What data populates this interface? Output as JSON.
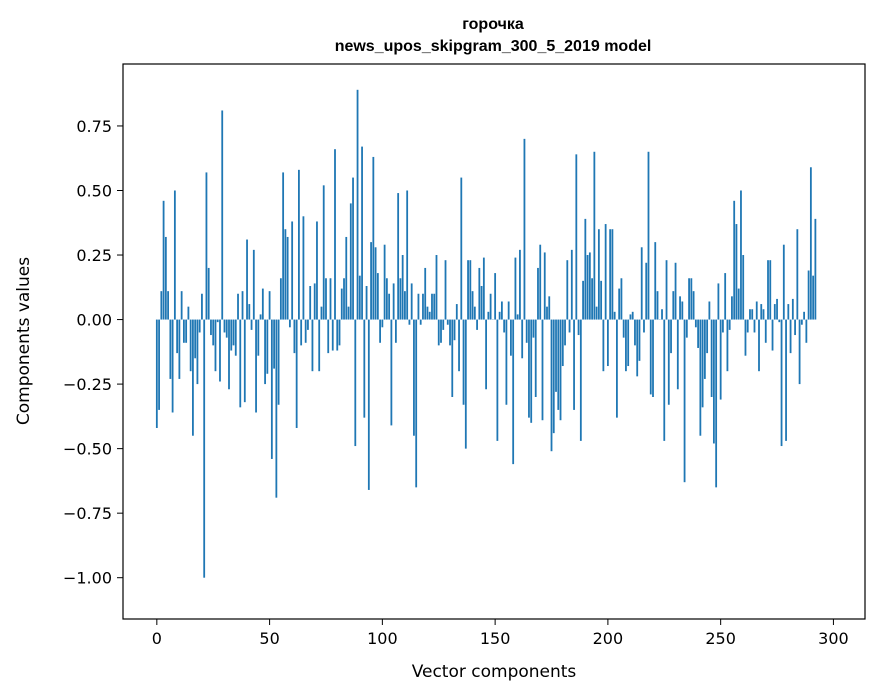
{
  "chart_data": {
    "type": "bar",
    "title": "горочка",
    "subtitle": "news_upos_skipgram_300_5_2019 model",
    "xlabel": "Vector components",
    "ylabel": "Components values",
    "xlim": [
      -15,
      314
    ],
    "ylim": [
      -1.16,
      0.99
    ],
    "x_ticks": [
      0,
      50,
      100,
      150,
      200,
      250,
      300
    ],
    "x_tick_labels": [
      "0",
      "50",
      "100",
      "150",
      "200",
      "250",
      "300"
    ],
    "y_ticks": [
      -1.0,
      -0.75,
      -0.5,
      -0.25,
      0.0,
      0.25,
      0.5,
      0.75
    ],
    "y_tick_labels": [
      "−1.00",
      "−0.75",
      "−0.50",
      "−0.25",
      "0.00",
      "0.25",
      "0.50",
      "0.75"
    ],
    "bar_color": "#1f77b4",
    "values": [
      -0.42,
      -0.35,
      0.11,
      0.46,
      0.32,
      0.11,
      -0.23,
      -0.36,
      0.5,
      -0.13,
      -0.23,
      0.11,
      -0.09,
      -0.09,
      0.05,
      -0.2,
      -0.45,
      -0.15,
      -0.25,
      -0.05,
      0.1,
      -1.0,
      0.57,
      0.2,
      -0.06,
      -0.1,
      -0.2,
      -0.01,
      -0.24,
      0.81,
      -0.05,
      -0.07,
      -0.27,
      -0.12,
      -0.1,
      -0.14,
      0.1,
      -0.34,
      0.11,
      -0.32,
      0.31,
      0.06,
      -0.04,
      0.27,
      -0.36,
      -0.14,
      0.02,
      0.12,
      -0.25,
      -0.21,
      0.11,
      -0.54,
      -0.19,
      -0.69,
      -0.33,
      0.16,
      0.57,
      0.35,
      0.32,
      -0.03,
      0.38,
      -0.13,
      -0.42,
      0.58,
      -0.1,
      0.4,
      -0.09,
      -0.04,
      0.13,
      -0.2,
      0.14,
      0.38,
      -0.2,
      0.05,
      0.52,
      0.16,
      -0.13,
      0.16,
      -0.12,
      0.66,
      -0.12,
      -0.1,
      0.12,
      0.16,
      0.32,
      0.05,
      0.45,
      0.55,
      -0.49,
      0.89,
      0.17,
      0.67,
      -0.38,
      0.13,
      -0.66,
      0.3,
      0.63,
      0.28,
      0.18,
      -0.09,
      -0.03,
      0.29,
      0.16,
      0.1,
      -0.41,
      0.14,
      -0.09,
      0.49,
      0.16,
      0.25,
      0.11,
      0.5,
      -0.02,
      0.14,
      -0.45,
      -0.65,
      0.1,
      -0.02,
      0.1,
      0.2,
      0.05,
      0.03,
      0.1,
      0.1,
      0.25,
      -0.1,
      -0.09,
      -0.04,
      0.23,
      -0.02,
      -0.1,
      -0.3,
      -0.08,
      0.06,
      -0.2,
      0.55,
      -0.33,
      -0.5,
      0.23,
      0.23,
      0.11,
      0.05,
      -0.04,
      0.2,
      0.13,
      0.24,
      -0.27,
      0.03,
      0.1,
      0.0,
      0.18,
      -0.47,
      0.03,
      0.07,
      -0.05,
      -0.33,
      0.07,
      -0.14,
      -0.56,
      0.24,
      0.02,
      0.27,
      -0.15,
      0.7,
      -0.09,
      -0.38,
      -0.4,
      -0.07,
      -0.3,
      0.2,
      0.29,
      -0.39,
      0.26,
      0.05,
      0.09,
      -0.51,
      -0.44,
      -0.28,
      -0.35,
      -0.39,
      -0.18,
      -0.1,
      0.23,
      -0.05,
      0.27,
      -0.35,
      0.64,
      -0.06,
      -0.47,
      0.15,
      0.39,
      0.25,
      0.26,
      0.16,
      0.65,
      0.05,
      0.35,
      0.15,
      -0.2,
      0.37,
      -0.18,
      0.35,
      0.35,
      0.03,
      -0.38,
      0.12,
      0.16,
      -0.07,
      -0.2,
      -0.18,
      0.02,
      0.03,
      -0.1,
      -0.22,
      -0.16,
      0.28,
      -0.05,
      0.22,
      0.65,
      -0.29,
      -0.3,
      0.3,
      0.11,
      0.0,
      0.04,
      -0.47,
      0.23,
      -0.33,
      -0.13,
      0.11,
      0.22,
      -0.27,
      0.09,
      0.07,
      -0.63,
      -0.07,
      0.16,
      0.16,
      0.11,
      -0.03,
      -0.11,
      -0.45,
      -0.34,
      -0.23,
      -0.13,
      0.07,
      -0.3,
      -0.48,
      -0.65,
      0.14,
      -0.31,
      -0.05,
      0.18,
      -0.2,
      -0.04,
      0.09,
      0.46,
      0.37,
      0.12,
      0.5,
      0.25,
      -0.14,
      -0.05,
      0.04,
      0.04,
      -0.05,
      0.07,
      -0.2,
      0.06,
      0.04,
      -0.09,
      0.23,
      0.23,
      -0.12,
      0.06,
      0.08,
      -0.01,
      -0.49,
      0.29,
      -0.47,
      0.06,
      -0.13,
      0.08,
      -0.06,
      0.35,
      -0.25,
      -0.02,
      0.03,
      -0.09,
      0.19,
      0.59,
      0.17,
      0.39
    ]
  }
}
